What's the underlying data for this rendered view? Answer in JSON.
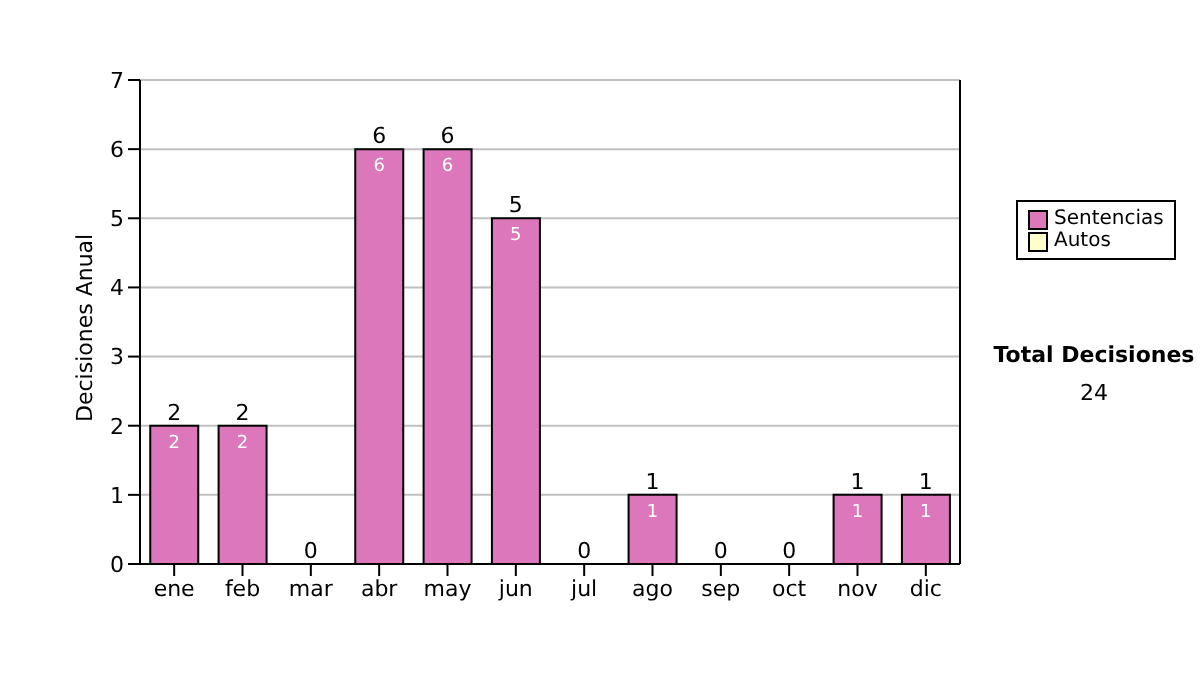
{
  "chart_data": {
    "type": "bar",
    "stacked": true,
    "ylabel": "Decisiones Anual",
    "categories": [
      "ene",
      "feb",
      "mar",
      "abr",
      "may",
      "jun",
      "jul",
      "ago",
      "sep",
      "oct",
      "nov",
      "dic"
    ],
    "series": [
      {
        "name": "Sentencias",
        "color": "#dd77bb",
        "values": [
          2,
          2,
          0,
          6,
          6,
          5,
          0,
          1,
          0,
          0,
          1,
          1
        ],
        "value_labels": [
          "2",
          "2",
          null,
          "6",
          "6",
          "5",
          null,
          "1",
          null,
          null,
          "1",
          "1"
        ]
      },
      {
        "name": "Autos",
        "color": "#ffffcc",
        "values": [
          0,
          0,
          0,
          0,
          0,
          0,
          0,
          0,
          0,
          0,
          0,
          0
        ]
      }
    ],
    "totals": [
      "2",
      "2",
      "0",
      "6",
      "6",
      "5",
      "0",
      "1",
      "0",
      "0",
      "1",
      "1"
    ],
    "ylim": [
      0,
      7
    ],
    "yticks": [
      0,
      1,
      2,
      3,
      4,
      5,
      6,
      7
    ],
    "grid": "y",
    "legend": "right",
    "annotations": [
      "Total Decisiones",
      "24"
    ]
  }
}
